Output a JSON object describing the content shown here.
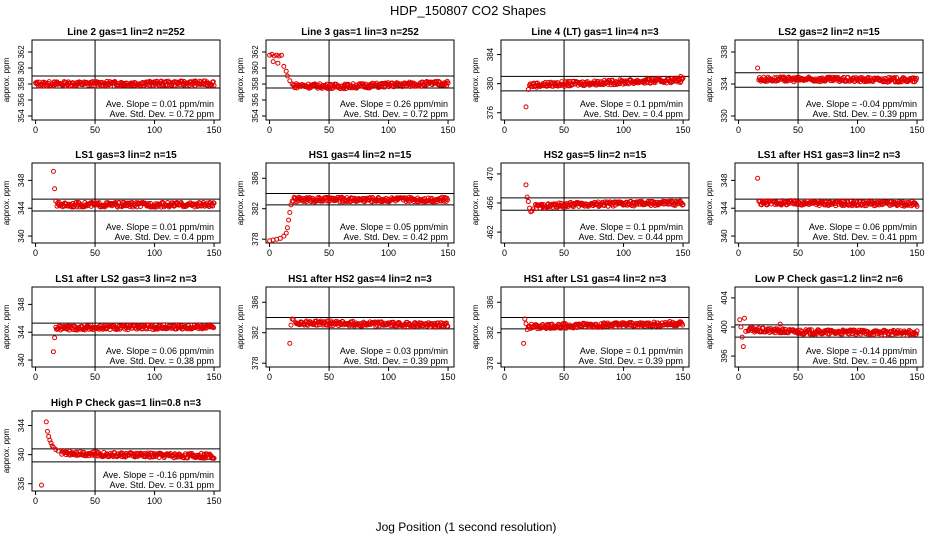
{
  "figure": {
    "title": "HDP_150807  CO2 Shapes",
    "xlabel": "Jog Position (1 second resolution)"
  },
  "chart_data": [
    {
      "type": "scatter",
      "title": "Line 2 gas=1 lin=2 n=252",
      "ylabel": "approx. ppm",
      "xlim": [
        -3,
        155
      ],
      "ylim": [
        353.5,
        363.5
      ],
      "yticks": [
        354,
        356,
        358,
        360,
        362
      ],
      "xticks": [
        0,
        50,
        100,
        150
      ],
      "hlines": [
        359.0,
        357.5
      ],
      "vline": 50,
      "slope_text": "Ave. Slope = 0.01  ppm/min",
      "std_text": "Ave. Std. Dev. = 0.72  ppm",
      "series": [
        {
          "name": "",
          "segments": [
            [
              0,
              358.0
            ],
            [
              150,
              358.1
            ]
          ],
          "points": []
        }
      ]
    },
    {
      "type": "scatter",
      "title": "Line 3 gas=1 lin=3 n=252",
      "ylabel": "approx. ppm",
      "xlim": [
        -3,
        155
      ],
      "ylim": [
        353.5,
        363.5
      ],
      "yticks": [
        354,
        356,
        358,
        360,
        362
      ],
      "xticks": [
        0,
        50,
        100,
        150
      ],
      "hlines": [
        359.0,
        357.5
      ],
      "vline": 50,
      "slope_text": "Ave. Slope = 0.26  ppm/min",
      "std_text": "Ave. Std. Dev. = 0.72  ppm",
      "series": [
        {
          "name": "",
          "segments": [
            [
              20,
              357.8
            ],
            [
              60,
              357.7
            ],
            [
              150,
              358.1
            ]
          ],
          "points": [
            [
              0,
              361.6
            ],
            [
              2,
              361.7
            ],
            [
              4,
              361.5
            ],
            [
              6,
              361.6
            ],
            [
              8,
              361.5
            ],
            [
              10,
              361.6
            ],
            [
              3,
              360.8
            ],
            [
              7,
              360.6
            ],
            [
              12,
              360.2
            ],
            [
              14,
              359.6
            ],
            [
              15,
              359.0
            ],
            [
              17,
              358.4
            ],
            [
              19,
              358.0
            ]
          ]
        }
      ]
    },
    {
      "type": "scatter",
      "title": "Line 4 (LT) gas=1 lin=4 n=3",
      "ylabel": "approx. ppm",
      "xlim": [
        -3,
        155
      ],
      "ylim": [
        375,
        386
      ],
      "yticks": [
        376,
        380,
        384
      ],
      "xticks": [
        0,
        50,
        100,
        150
      ],
      "hlines": [
        381.0,
        379.0
      ],
      "vline": 50,
      "slope_text": "Ave. Slope = 0.1  ppm/min",
      "std_text": "Ave. Std. Dev. = 0.4  ppm",
      "series": [
        {
          "name": "",
          "segments": [
            [
              21,
              379.8
            ],
            [
              150,
              380.5
            ]
          ],
          "points": [
            [
              18,
              376.8
            ],
            [
              20,
              379.2
            ],
            [
              60,
              380.3
            ],
            [
              120,
              380.6
            ],
            [
              148,
              381.0
            ]
          ]
        }
      ]
    },
    {
      "type": "scatter",
      "title": "LS2 gas=2 lin=2 n=15",
      "ylabel": "approx. ppm",
      "xlim": [
        -3,
        155
      ],
      "ylim": [
        329.5,
        339.5
      ],
      "yticks": [
        330,
        334,
        338
      ],
      "xticks": [
        0,
        50,
        100,
        150
      ],
      "hlines": [
        335.4,
        333.6
      ],
      "vline": 50,
      "slope_text": "Ave. Slope = -0.04  ppm/min",
      "std_text": "Ave. Std. Dev. = 0.39  ppm",
      "series": [
        {
          "name": "",
          "segments": [
            [
              17,
              334.6
            ],
            [
              150,
              334.5
            ]
          ],
          "points": [
            [
              16,
              336.0
            ]
          ]
        }
      ]
    },
    {
      "type": "scatter",
      "title": "LS1 gas=3 lin=2 n=15",
      "ylabel": "approx. ppm",
      "xlim": [
        -3,
        155
      ],
      "ylim": [
        339,
        350.5
      ],
      "yticks": [
        340,
        344,
        348
      ],
      "xticks": [
        0,
        50,
        100,
        150
      ],
      "hlines": [
        345.3,
        343.6
      ],
      "vline": 50,
      "slope_text": "Ave. Slope = 0.01  ppm/min",
      "std_text": "Ave. Std. Dev. = 0.4  ppm",
      "series": [
        {
          "name": "",
          "segments": [
            [
              18,
              344.5
            ],
            [
              150,
              344.5
            ]
          ],
          "points": [
            [
              15,
              349.3
            ],
            [
              16,
              346.8
            ],
            [
              17,
              345.0
            ]
          ]
        }
      ]
    },
    {
      "type": "scatter",
      "title": "HS1 gas=4 lin=2 n=15",
      "ylabel": "approx. ppm",
      "xlim": [
        -3,
        155
      ],
      "ylim": [
        377.5,
        388
      ],
      "yticks": [
        378,
        382,
        386
      ],
      "xticks": [
        0,
        50,
        100,
        150
      ],
      "hlines": [
        384.0,
        382.5
      ],
      "vline": 50,
      "slope_text": "Ave. Slope = 0.05  ppm/min",
      "std_text": "Ave. Std. Dev. = 0.42  ppm",
      "series": [
        {
          "name": "",
          "segments": [
            [
              20,
              383.2
            ],
            [
              150,
              383.2
            ]
          ],
          "points": [
            [
              0,
              377.8
            ],
            [
              3,
              377.9
            ],
            [
              6,
              378.0
            ],
            [
              9,
              378.1
            ],
            [
              12,
              378.4
            ],
            [
              14,
              378.8
            ],
            [
              15,
              379.5
            ],
            [
              16,
              380.5
            ],
            [
              17,
              381.5
            ],
            [
              18,
              382.5
            ],
            [
              19,
              383.0
            ]
          ]
        }
      ]
    },
    {
      "type": "scatter",
      "title": "HS2 gas=5 lin=2 n=15",
      "ylabel": "approx. ppm",
      "xlim": [
        -3,
        155
      ],
      "ylim": [
        460.5,
        471.5
      ],
      "yticks": [
        462,
        466,
        470
      ],
      "xticks": [
        0,
        50,
        100,
        150
      ],
      "hlines": [
        466.7,
        465.0
      ],
      "vline": 50,
      "slope_text": "Ave. Slope = 0.1  ppm/min",
      "std_text": "Ave. Std. Dev. = 0.44  ppm",
      "series": [
        {
          "name": "",
          "segments": [
            [
              26,
              465.5
            ],
            [
              60,
              465.8
            ],
            [
              150,
              466.0
            ]
          ],
          "points": [
            [
              18,
              468.5
            ],
            [
              19,
              466.8
            ],
            [
              20,
              466.2
            ],
            [
              21,
              465.3
            ],
            [
              22,
              464.8
            ],
            [
              23,
              464.9
            ],
            [
              24,
              465.2
            ]
          ]
        }
      ]
    },
    {
      "type": "scatter",
      "title": "LS1 after HS1 gas=3 lin=2 n=3",
      "ylabel": "approx. ppm",
      "xlim": [
        -3,
        155
      ],
      "ylim": [
        339,
        350.5
      ],
      "yticks": [
        340,
        344,
        348
      ],
      "xticks": [
        0,
        50,
        100,
        150
      ],
      "hlines": [
        345.3,
        343.6
      ],
      "vline": 50,
      "slope_text": "Ave. Slope = 0.06  ppm/min",
      "std_text": "Ave. Std. Dev. = 0.41  ppm",
      "series": [
        {
          "name": "",
          "segments": [
            [
              18,
              344.8
            ],
            [
              150,
              344.6
            ]
          ],
          "points": [
            [
              16,
              348.3
            ],
            [
              17,
              345.0
            ]
          ]
        }
      ]
    },
    {
      "type": "scatter",
      "title": "LS1 after LS2 gas=3 lin=2 n=3",
      "ylabel": "approx. ppm",
      "xlim": [
        -3,
        155
      ],
      "ylim": [
        339,
        350.5
      ],
      "yticks": [
        340,
        344,
        348
      ],
      "xticks": [
        0,
        50,
        100,
        150
      ],
      "hlines": [
        345.3,
        343.6
      ],
      "vline": 50,
      "slope_text": "Ave. Slope = 0.06  ppm/min",
      "std_text": "Ave. Std. Dev. = 0.38  ppm",
      "series": [
        {
          "name": "",
          "segments": [
            [
              17,
              344.6
            ],
            [
              150,
              344.8
            ]
          ],
          "points": [
            [
              15,
              341.2
            ],
            [
              16,
              343.2
            ]
          ]
        }
      ]
    },
    {
      "type": "scatter",
      "title": "HS1 after HS2 gas=4 lin=2 n=3",
      "ylabel": "approx. ppm",
      "xlim": [
        -3,
        155
      ],
      "ylim": [
        377.5,
        388
      ],
      "yticks": [
        378,
        382,
        386
      ],
      "xticks": [
        0,
        50,
        100,
        150
      ],
      "hlines": [
        384.0,
        382.5
      ],
      "vline": 50,
      "slope_text": "Ave. Slope = 0.03  ppm/min",
      "std_text": "Ave. Std. Dev. = 0.39  ppm",
      "series": [
        {
          "name": "",
          "segments": [
            [
              22,
              383.3
            ],
            [
              150,
              383.0
            ]
          ],
          "points": [
            [
              17,
              380.6
            ],
            [
              18,
              383.0
            ],
            [
              19,
              383.8
            ],
            [
              20,
              383.7
            ]
          ]
        }
      ]
    },
    {
      "type": "scatter",
      "title": "HS1 after LS1 gas=4 lin=2 n=3",
      "ylabel": "approx. ppm",
      "xlim": [
        -3,
        155
      ],
      "ylim": [
        377.5,
        388
      ],
      "yticks": [
        378,
        382,
        386
      ],
      "xticks": [
        0,
        50,
        100,
        150
      ],
      "hlines": [
        384.0,
        382.5
      ],
      "vline": 50,
      "slope_text": "Ave. Slope = 0.1  ppm/min",
      "std_text": "Ave. Std. Dev. = 0.39  ppm",
      "series": [
        {
          "name": "",
          "segments": [
            [
              20,
              382.8
            ],
            [
              150,
              383.2
            ]
          ],
          "points": [
            [
              16,
              380.6
            ],
            [
              17,
              383.8
            ],
            [
              18,
              383.2
            ],
            [
              19,
              382.4
            ]
          ]
        }
      ]
    },
    {
      "type": "scatter",
      "title": "Low P Check gas=1.2 lin=2 n=6",
      "ylabel": "approx. ppm",
      "xlim": [
        -3,
        155
      ],
      "ylim": [
        394.5,
        405.5
      ],
      "yticks": [
        396,
        400,
        404
      ],
      "xticks": [
        0,
        50,
        100,
        150
      ],
      "hlines": [
        400.3,
        398.6
      ],
      "vline": 50,
      "slope_text": "Ave. Slope = -0.14  ppm/min",
      "std_text": "Ave. Std. Dev. = 0.46  ppm",
      "series": [
        {
          "name": "",
          "segments": [
            [
              8,
              399.6
            ],
            [
              60,
              399.3
            ],
            [
              150,
              399.2
            ]
          ],
          "points": [
            [
              1,
              401.0
            ],
            [
              2,
              400.0
            ],
            [
              3,
              398.6
            ],
            [
              4,
              397.3
            ],
            [
              5,
              401.2
            ],
            [
              6,
              399.4
            ],
            [
              35,
              400.4
            ]
          ]
        }
      ]
    },
    {
      "type": "scatter",
      "title": "High P Check gas=1 lin=0.8 n=3",
      "ylabel": "approx. ppm",
      "xlim": [
        -3,
        155
      ],
      "ylim": [
        335,
        346
      ],
      "yticks": [
        336,
        340,
        344
      ],
      "xticks": [
        0,
        50,
        100,
        150
      ],
      "hlines": [
        340.8,
        339.0
      ],
      "vline": 50,
      "slope_text": "Ave. Slope = -0.16  ppm/min",
      "std_text": "Ave. Std. Dev. = 0.31  ppm",
      "series": [
        {
          "name": "",
          "segments": [
            [
              22,
              340.3
            ],
            [
              60,
              340.0
            ],
            [
              150,
              339.8
            ]
          ],
          "points": [
            [
              5,
              335.8
            ],
            [
              9,
              344.5
            ],
            [
              10,
              343.2
            ],
            [
              11,
              342.5
            ],
            [
              12,
              342.0
            ],
            [
              13,
              341.6
            ],
            [
              14,
              341.2
            ],
            [
              15,
              341.0
            ],
            [
              17,
              340.7
            ],
            [
              19,
              340.5
            ]
          ]
        }
      ]
    }
  ],
  "colors": {
    "marker": "#e00000",
    "axis": "#000000",
    "background": "#ffffff"
  }
}
